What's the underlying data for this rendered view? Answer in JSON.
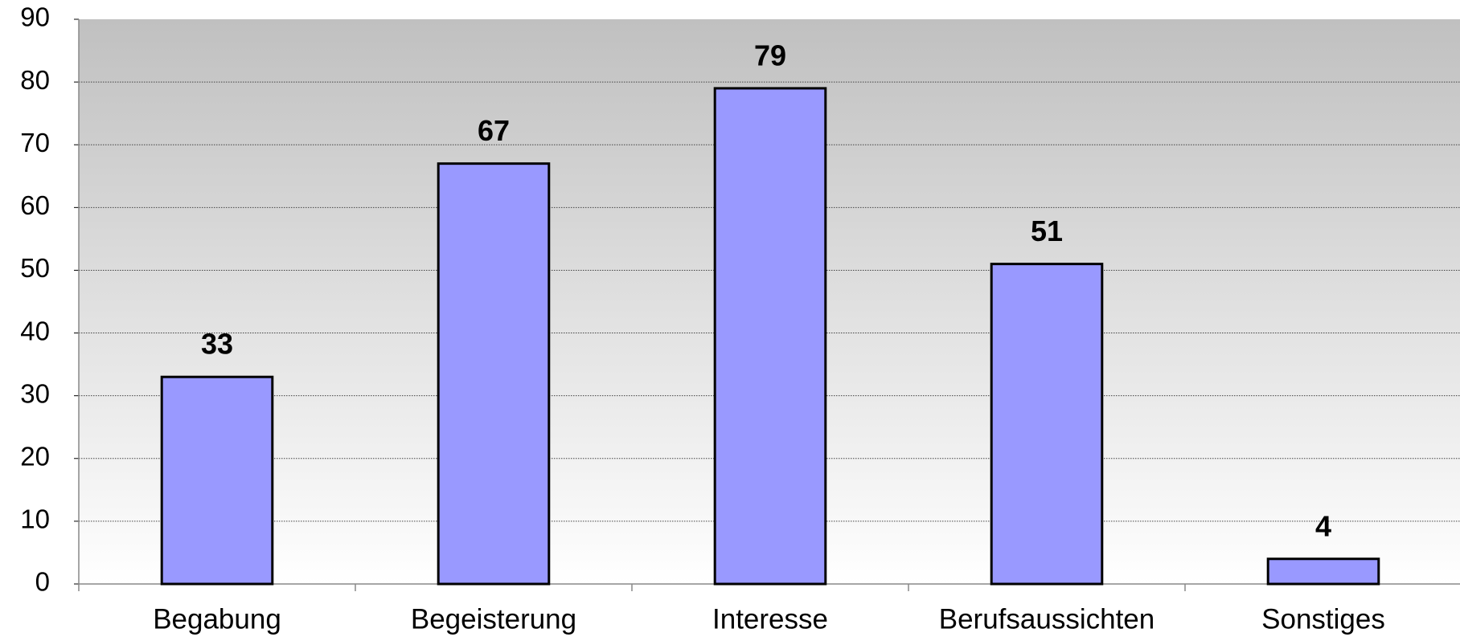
{
  "chart_data": {
    "type": "bar",
    "categories": [
      "Begabung",
      "Begeisterung",
      "Interesse",
      "Berufsaussichten",
      "Sonstiges"
    ],
    "values": [
      33,
      67,
      79,
      51,
      4
    ],
    "color": "#9999ff",
    "ylim": [
      0,
      90
    ],
    "yticks": [
      0,
      10,
      20,
      30,
      40,
      50,
      60,
      70,
      80,
      90
    ],
    "grid": true
  }
}
